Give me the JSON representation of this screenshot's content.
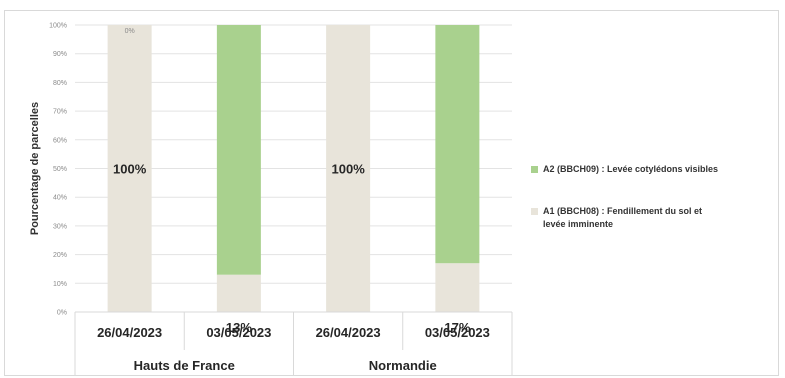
{
  "chart_data": {
    "type": "bar",
    "stacked": true,
    "ylabel": "Pourcentage de parcelles",
    "ylim": [
      0,
      100
    ],
    "yticks": [
      "0%",
      "10%",
      "20%",
      "30%",
      "40%",
      "50%",
      "60%",
      "70%",
      "80%",
      "90%",
      "100%"
    ],
    "categories": [
      "26/04/2023",
      "03/05/2023",
      "26/04/2023",
      "03/05/2023"
    ],
    "groups": [
      {
        "name": "Hauts de France",
        "span": [
          0,
          1
        ]
      },
      {
        "name": "Normandie",
        "span": [
          2,
          3
        ]
      }
    ],
    "series": [
      {
        "name": "A1 (BBCH08) : Fendillement du sol et levée imminente",
        "color": "#e8e4da",
        "values": [
          100,
          13,
          100,
          17
        ],
        "labels": [
          "100%",
          "13%",
          "100%",
          "17%"
        ]
      },
      {
        "name": "A2 (BBCH09) : Levée cotylédons visibles",
        "color": "#a9d18e",
        "values": [
          0,
          87,
          0,
          83
        ],
        "labels": [
          "0%",
          "",
          "",
          ""
        ]
      }
    ],
    "legend_position": "right",
    "grid": true
  }
}
